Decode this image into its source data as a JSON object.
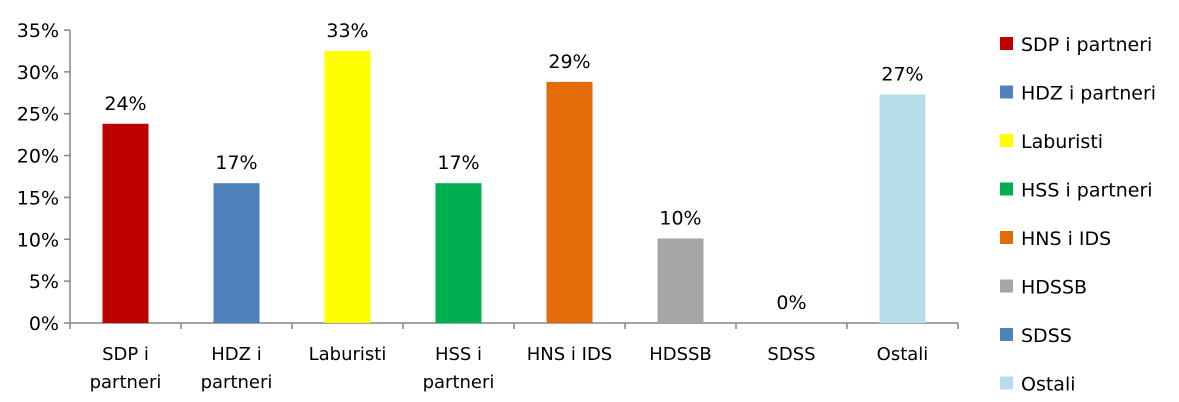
{
  "chart_data": {
    "type": "bar",
    "categories": [
      [
        "SDP i",
        "partneri"
      ],
      [
        "HDZ i",
        "partneri"
      ],
      [
        "Laburisti"
      ],
      [
        "HSS i",
        "partneri"
      ],
      [
        "HNS i IDS"
      ],
      [
        "HDSSB"
      ],
      [
        "SDSS"
      ],
      [
        "Ostali"
      ]
    ],
    "values": [
      23.8,
      16.7,
      32.5,
      16.7,
      28.8,
      10.1,
      0,
      27.3
    ],
    "data_labels": [
      "24%",
      "17%",
      "33%",
      "17%",
      "29%",
      "10%",
      "0%",
      "27%"
    ],
    "colors": [
      "#C00000",
      "#4F81BD",
      "#FFFF00",
      "#00B050",
      "#E36C09",
      "#A6A6A6",
      "#4F81BD",
      "#B7DEE8"
    ],
    "legend": [
      {
        "label": "SDP i partneri",
        "color": "#C00000"
      },
      {
        "label": "HDZ i partneri",
        "color": "#4F81BD"
      },
      {
        "label": "Laburisti",
        "color": "#FFFF00"
      },
      {
        "label": "HSS i partneri",
        "color": "#00B050"
      },
      {
        "label": "HNS i IDS",
        "color": "#E36C09"
      },
      {
        "label": "HDSSB",
        "color": "#A6A6A6"
      },
      {
        "label": "SDSS",
        "color": "#4F81BD"
      },
      {
        "label": "Ostali",
        "color": "#B7DEE8"
      }
    ],
    "legend_position": "right",
    "yticks": [
      "0%",
      "5%",
      "10%",
      "15%",
      "20%",
      "25%",
      "30%",
      "35%"
    ],
    "ylim": [
      0,
      35
    ],
    "grid": false,
    "title": "",
    "xlabel": "",
    "ylabel": ""
  }
}
